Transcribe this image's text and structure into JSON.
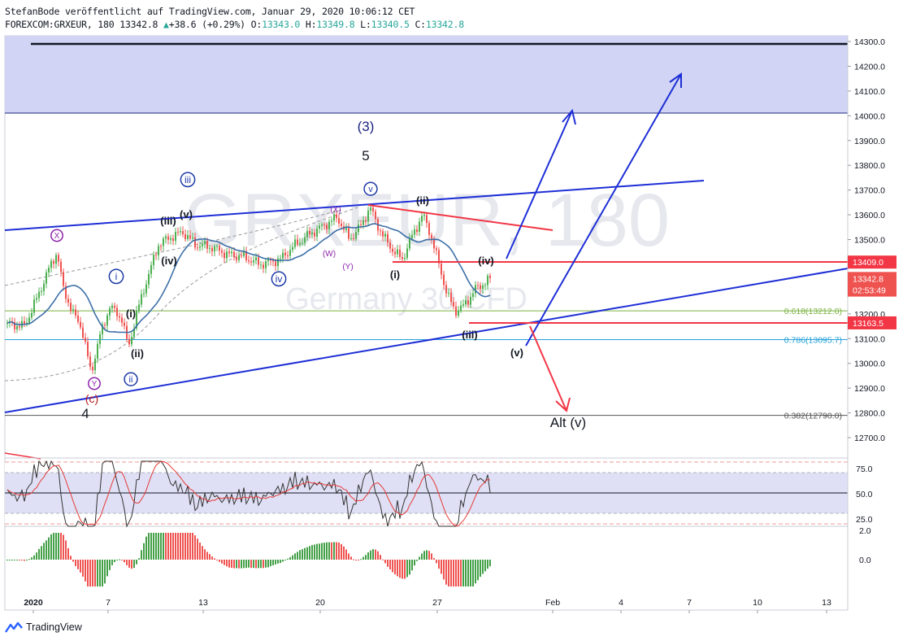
{
  "header": {
    "publisher_line": "StefanBode veröffentlicht auf TradingView.com, Januar 29, 2020 10:06:12 CET",
    "symbol": "FOREXCOM:GRXEUR, 180",
    "last": "13342.8",
    "change": "+38.6 (+0.29%)",
    "open_label": "O:",
    "open": "13343.0",
    "high_label": "H:",
    "high": "13349.8",
    "low_label": "L:",
    "low": "13340.5",
    "close_label": "C:",
    "close": "13342.8"
  },
  "watermark": {
    "symbol": "GRXEUR, 180",
    "name": "Germany 30 CFD"
  },
  "branding": {
    "name": "TradingView"
  },
  "price_axis": {
    "ticks": [
      "14300.0",
      "14200.0",
      "14100.0",
      "14000.0",
      "13900.0",
      "13800.0",
      "13700.0",
      "13600.0",
      "13500.0",
      "13400.0",
      "13300.0",
      "13200.0",
      "13100.0",
      "13000.0",
      "12900.0",
      "12800.0",
      "12700.0"
    ],
    "tags": [
      {
        "label": "13409.0",
        "value": 13409.0,
        "color": "#f23645"
      },
      {
        "label": "13342.8",
        "value": 13342.8,
        "color": "#ef5350"
      },
      {
        "label": "02:53:49",
        "value": 13296,
        "color": "#ef5350"
      },
      {
        "label": "13163.5",
        "value": 13163.5,
        "color": "#f23645"
      }
    ]
  },
  "time_axis": {
    "labels": [
      "2020",
      "7",
      "13",
      "20",
      "27",
      "Feb",
      "4",
      "7",
      "10",
      "13"
    ]
  },
  "fibonacci": [
    {
      "label": "0.618(13212.0)",
      "value": 13212.0,
      "color": "#7cb342"
    },
    {
      "label": "0.786(13095.7)",
      "value": 13095.7,
      "color": "#26a0d8"
    },
    {
      "label": "0.382(12790.0)",
      "value": 12790.0,
      "color": "#555555"
    }
  ],
  "wave_labels": [
    {
      "text": "(3)",
      "color": "#1a237e"
    },
    {
      "text": "5",
      "color": "#131722"
    },
    {
      "text": "iii",
      "color": "#1e3aa8"
    },
    {
      "text": "(iii)",
      "color": "#131722"
    },
    {
      "text": "(v)",
      "color": "#131722"
    },
    {
      "text": "(iv)",
      "color": "#131722"
    },
    {
      "text": "X",
      "color": "#8e24aa"
    },
    {
      "text": "i",
      "color": "#1e3aa8"
    },
    {
      "text": "(i)",
      "color": "#131722"
    },
    {
      "text": "(ii)",
      "color": "#131722"
    },
    {
      "text": "ii",
      "color": "#1e3aa8"
    },
    {
      "text": "Y",
      "color": "#8e24aa"
    },
    {
      "text": "(c)",
      "color": "#b71c1c"
    },
    {
      "text": "4",
      "color": "#131722"
    },
    {
      "text": "iv",
      "color": "#1e3aa8"
    },
    {
      "text": "v",
      "color": "#1e3aa8"
    },
    {
      "text": "(X)",
      "color": "#8e24aa"
    },
    {
      "text": "(W)",
      "color": "#8e24aa"
    },
    {
      "text": "(Y)",
      "color": "#8e24aa"
    },
    {
      "text": "(ii)",
      "color": "#131722"
    },
    {
      "text": "(i)",
      "color": "#131722"
    },
    {
      "text": "(iv)",
      "color": "#131722"
    },
    {
      "text": "(iii)",
      "color": "#131722"
    },
    {
      "text": "(v)",
      "color": "#131722"
    },
    {
      "text": "Alt (v)",
      "color": "#131722"
    }
  ],
  "rsi_axis": {
    "ticks": [
      "75.0",
      "50.0",
      "25.0"
    ]
  },
  "ao_axis": {
    "ticks": [
      "2.0",
      "0.0"
    ]
  },
  "colors": {
    "up": "#26a69a",
    "candle_up": "#4caf50",
    "candle_down": "#ef5350",
    "trend_blue": "#1e2fd6",
    "resistance_red": "#f23645",
    "zone": "#d1d4f5"
  },
  "chart_data": {
    "type": "candlestick",
    "title": "",
    "timeframe": "180",
    "ylim": [
      12640,
      14320
    ],
    "ohlc_approx": [
      {
        "x": "Jan 2",
        "close": 13150
      },
      {
        "x": "Jan 3",
        "close": 13430
      },
      {
        "x": "Jan 6",
        "close": 12960
      },
      {
        "x": "Jan 7",
        "close": 13200
      },
      {
        "x": "Jan 8",
        "close": 13080
      },
      {
        "x": "Jan 9",
        "close": 13380
      },
      {
        "x": "Jan 10",
        "close": 13500
      },
      {
        "x": "Jan 13",
        "close": 13460
      },
      {
        "x": "Jan 14",
        "close": 13440
      },
      {
        "x": "Jan 15",
        "close": 13410
      },
      {
        "x": "Jan 16",
        "close": 13460
      },
      {
        "x": "Jan 17",
        "close": 13530
      },
      {
        "x": "Jan 20",
        "close": 13560
      },
      {
        "x": "Jan 21",
        "close": 13470
      },
      {
        "x": "Jan 22",
        "close": 13600
      },
      {
        "x": "Jan 23",
        "close": 13500
      },
      {
        "x": "Jan 24",
        "close": 13590
      },
      {
        "x": "Jan 27",
        "close": 13230
      },
      {
        "x": "Jan 28",
        "close": 13300
      },
      {
        "x": "Jan 29",
        "close": 13342.8
      }
    ],
    "indicators": [
      "moving average",
      "RSI",
      "Awesome Oscillator"
    ]
  }
}
